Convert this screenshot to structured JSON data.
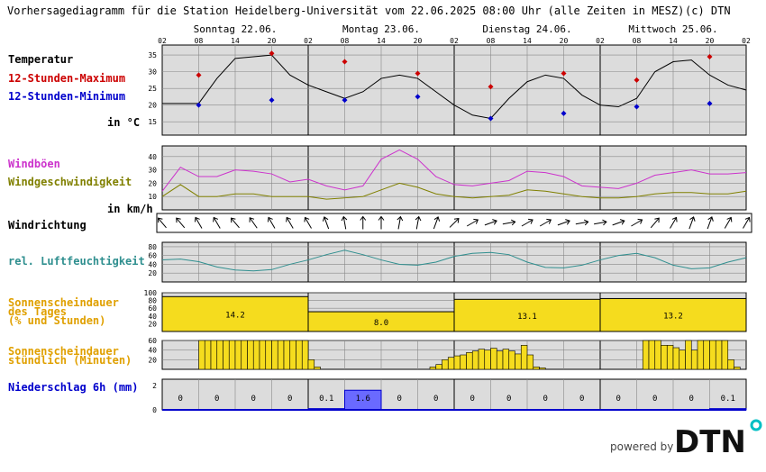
{
  "header": {
    "title": "Vorhersagediagramm für die Station Heidelberg-Universität vom 22.06.2025 08:00 Uhr (alle Zeiten in MESZ)",
    "copyright": "(c) DTN"
  },
  "days": [
    "Sonntag 22.06.",
    "Montag 23.06.",
    "Dienstag 24.06.",
    "Mittwoch 25.06."
  ],
  "hour_labels": [
    "02",
    "08",
    "14",
    "20"
  ],
  "end_hour_label": "02",
  "labels": {
    "temperatur": "Temperatur",
    "max12": "12-Stunden-Maximum",
    "min12": "12-Stunden-Minimum",
    "temp_unit": "in °C",
    "windboeen": "Windböen",
    "windgeschw": "Windgeschwindigkeit",
    "wind_unit": "in km/h",
    "windrichtung": "Windrichtung",
    "feuchte": "rel. Luftfeuchtigkeit",
    "sonne_tag_1": "Sonnenscheindauer",
    "sonne_tag_2": "des Tages",
    "sonne_tag_3": "(% und Stunden)",
    "sonne_std_1": "Sonnenscheindauer",
    "sonne_std_2": "stündlich (Minuten)",
    "niederschlag": "Niederschlag 6h (mm)"
  },
  "footer": {
    "powered": "powered by",
    "brand": "DTN"
  },
  "colors": {
    "temp": "#000000",
    "max": "#cc0000",
    "min": "#0000cc",
    "gust": "#cc33cc",
    "wind": "#808000",
    "humidity": "#2f8f8f",
    "sun": "#f5dc1e",
    "precip": "#6a6aff",
    "bg": "#dcdcdc",
    "brand": "#111111",
    "brand_dot": "#00bfc4"
  },
  "chart_data": [
    {
      "type": "line",
      "name": "Temperatur",
      "time_step_hours": 3,
      "start": "22.06. 02:00",
      "y_ticks": [
        15,
        20,
        25,
        30,
        35
      ],
      "ylim": [
        11,
        38
      ],
      "series": [
        {
          "name": "Temperatur",
          "values": [
            20.5,
            20.5,
            20.5,
            28,
            34,
            34.5,
            35,
            29,
            26,
            24,
            22,
            24,
            28,
            29,
            28,
            24,
            20,
            17,
            16,
            22,
            27,
            29,
            28,
            23,
            20,
            19.5,
            22,
            30,
            33,
            33.5,
            29,
            26,
            24.5
          ]
        },
        {
          "name": "12-Stunden-Maximum",
          "points": [
            [
              6,
              29
            ],
            [
              18,
              35.5
            ],
            [
              30,
              33
            ],
            [
              42,
              29.5
            ],
            [
              54,
              25.5
            ],
            [
              66,
              29.5
            ],
            [
              78,
              27.5
            ],
            [
              90,
              34.5
            ]
          ]
        },
        {
          "name": "12-Stunden-Minimum",
          "points": [
            [
              6,
              20
            ],
            [
              18,
              21.5
            ],
            [
              30,
              21.5
            ],
            [
              42,
              22.5
            ],
            [
              54,
              16
            ],
            [
              66,
              17.5
            ],
            [
              78,
              19.5
            ],
            [
              90,
              20.5
            ]
          ]
        }
      ]
    },
    {
      "type": "line",
      "name": "Wind",
      "ylim": [
        0,
        48
      ],
      "y_ticks": [
        10,
        20,
        30,
        40
      ],
      "series": [
        {
          "name": "Windböen",
          "values": [
            14,
            32,
            25,
            25,
            30,
            29,
            27,
            21,
            23,
            18,
            15,
            18,
            38,
            45,
            38,
            25,
            19,
            18,
            20,
            22,
            29,
            28,
            25,
            18,
            17,
            16,
            20,
            26,
            28,
            30,
            27,
            27,
            28
          ]
        },
        {
          "name": "Windgeschwindigkeit",
          "values": [
            10,
            19,
            10,
            10,
            12,
            12,
            10,
            10,
            10,
            8,
            9,
            10,
            15,
            20,
            17,
            12,
            10,
            9,
            10,
            11,
            15,
            14,
            12,
            10,
            9,
            9,
            10,
            12,
            13,
            13,
            12,
            12,
            14
          ]
        }
      ]
    },
    {
      "type": "table",
      "name": "Windrichtung",
      "directions_deg": [
        320,
        320,
        330,
        330,
        320,
        325,
        330,
        330,
        330,
        340,
        350,
        0,
        0,
        10,
        10,
        20,
        45,
        60,
        70,
        80,
        60,
        60,
        70,
        80,
        80,
        70,
        60,
        40,
        30,
        20,
        20,
        30,
        30
      ]
    },
    {
      "type": "line",
      "name": "rel. Luftfeuchtigkeit",
      "ylim": [
        0,
        90
      ],
      "y_ticks": [
        20,
        40,
        60,
        80
      ],
      "series": [
        {
          "name": "rel. Luftfeuchtigkeit",
          "values": [
            50,
            52,
            46,
            34,
            27,
            25,
            28,
            40,
            50,
            62,
            72,
            62,
            50,
            40,
            38,
            45,
            58,
            65,
            67,
            62,
            45,
            33,
            32,
            38,
            50,
            60,
            65,
            55,
            38,
            30,
            32,
            45,
            55
          ]
        }
      ]
    },
    {
      "type": "bar",
      "name": "Sonnenscheindauer des Tages",
      "ylim": [
        0,
        100
      ],
      "y_ticks": [
        20,
        40,
        60,
        80,
        100
      ],
      "categories": [
        "Sonntag 22.06.",
        "Montag 23.06.",
        "Dienstag 24.06.",
        "Mittwoch 25.06."
      ],
      "values": [
        90,
        51,
        83,
        85
      ],
      "data_labels": [
        "14.2",
        "8.0",
        "13.1",
        "13.2"
      ]
    },
    {
      "type": "bar",
      "name": "Sonnenscheindauer stündlich (Minuten)",
      "ylim": [
        0,
        60
      ],
      "y_ticks": [
        20,
        40,
        60
      ],
      "start": "22.06. 02:00",
      "values": [
        0,
        0,
        0,
        0,
        0,
        0,
        60,
        60,
        60,
        60,
        60,
        60,
        60,
        60,
        60,
        60,
        60,
        60,
        60,
        60,
        60,
        60,
        60,
        60,
        20,
        5,
        0,
        0,
        0,
        0,
        0,
        0,
        0,
        0,
        0,
        0,
        0,
        0,
        0,
        0,
        0,
        0,
        0,
        0,
        5,
        10,
        20,
        25,
        28,
        30,
        35,
        38,
        42,
        40,
        44,
        38,
        42,
        38,
        32,
        50,
        30,
        5,
        3,
        0,
        0,
        0,
        0,
        0,
        0,
        0,
        0,
        0,
        0,
        0,
        0,
        0,
        0,
        0,
        0,
        60,
        60,
        60,
        50,
        50,
        45,
        40,
        60,
        40,
        60,
        60,
        60,
        60,
        60,
        20,
        5,
        0,
        0,
        0,
        0,
        0,
        0,
        0,
        0,
        0,
        0,
        0,
        0,
        0,
        0,
        0,
        0,
        0,
        0,
        0,
        0,
        0,
        0,
        40,
        55,
        60,
        60,
        60,
        60,
        60,
        60,
        60,
        55,
        60,
        50,
        60,
        50,
        60,
        15,
        3,
        0,
        0,
        0,
        0,
        0
      ]
    },
    {
      "type": "bar",
      "name": "Niederschlag 6h (mm)",
      "ylim": [
        0,
        2.5
      ],
      "y_ticks": [
        0,
        2
      ],
      "categories": [
        "22.06. 02-08",
        "22.06. 08-14",
        "22.06. 14-20",
        "22.06. 20-02",
        "23.06. 02-08",
        "23.06. 08-14",
        "23.06. 14-20",
        "23.06. 20-02",
        "24.06. 02-08",
        "24.06. 08-14",
        "24.06. 14-20",
        "24.06. 20-02",
        "25.06. 02-08",
        "25.06. 08-14",
        "25.06. 14-20",
        "25.06. 20-02"
      ],
      "values": [
        0,
        0,
        0,
        0,
        0.1,
        1.6,
        0,
        0,
        0,
        0,
        0,
        0,
        0,
        0,
        0,
        0.1
      ],
      "data_labels": [
        "0",
        "0",
        "0",
        "0",
        "0.1",
        "1.6",
        "0",
        "0",
        "0",
        "0",
        "0",
        "0",
        "0",
        "0",
        "0",
        "0.1"
      ]
    }
  ]
}
